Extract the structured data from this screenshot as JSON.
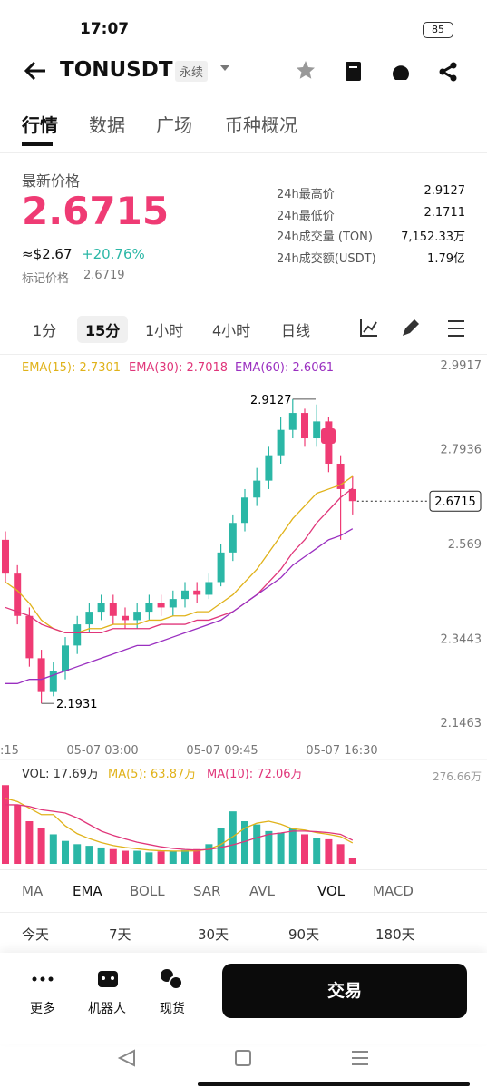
{
  "status_bar": {
    "time": "17:07",
    "battery": "85"
  },
  "header": {
    "symbol": "TONUSDT",
    "badge": "永续"
  },
  "tabs": [
    "行情",
    "数据",
    "广场",
    "币种概况"
  ],
  "price": {
    "label": "最新价格",
    "last": "2.6715",
    "usd": "≈$2.67",
    "change": "+20.76%",
    "mark_label": "标记价格",
    "mark": "2.6719"
  },
  "stats": [
    {
      "label": "24h最高价",
      "value": "2.9127"
    },
    {
      "label": "24h最低价",
      "value": "2.1711"
    },
    {
      "label": "24h成交量 (TON)",
      "value": "7,152.33万"
    },
    {
      "label": "24h成交额(USDT)",
      "value": "1.79亿"
    }
  ],
  "intervals": [
    "1分",
    "15分",
    "1小时",
    "4小时",
    "日线"
  ],
  "chart_data": {
    "type": "candlestick",
    "open": [
      2.58,
      2.5,
      2.4,
      2.3,
      2.22,
      2.27,
      2.33,
      2.38,
      2.41,
      2.43,
      2.4,
      2.39,
      2.41,
      2.43,
      2.42,
      2.44,
      2.46,
      2.45,
      2.48,
      2.55,
      2.62,
      2.68,
      2.72,
      2.78,
      2.84,
      2.88,
      2.82,
      2.86,
      2.76,
      2.7
    ],
    "high": [
      2.6,
      2.52,
      2.42,
      2.32,
      2.29,
      2.35,
      2.4,
      2.43,
      2.45,
      2.45,
      2.42,
      2.43,
      2.45,
      2.45,
      2.46,
      2.48,
      2.48,
      2.5,
      2.57,
      2.64,
      2.7,
      2.75,
      2.8,
      2.87,
      2.9127,
      2.89,
      2.9,
      2.87,
      2.78,
      2.73
    ],
    "low": [
      2.48,
      2.38,
      2.28,
      2.1931,
      2.21,
      2.25,
      2.31,
      2.36,
      2.39,
      2.38,
      2.37,
      2.37,
      2.39,
      2.4,
      2.4,
      2.42,
      2.43,
      2.44,
      2.47,
      2.53,
      2.6,
      2.66,
      2.7,
      2.76,
      2.82,
      2.8,
      2.8,
      2.74,
      2.58,
      2.64
    ],
    "close": [
      2.5,
      2.4,
      2.3,
      2.22,
      2.27,
      2.33,
      2.38,
      2.41,
      2.43,
      2.4,
      2.39,
      2.41,
      2.43,
      2.42,
      2.44,
      2.46,
      2.45,
      2.48,
      2.55,
      2.62,
      2.68,
      2.72,
      2.78,
      2.84,
      2.88,
      2.82,
      2.86,
      2.76,
      2.7,
      2.6715
    ],
    "up_color": "#2bb7a6",
    "down_color": "#ef3b74",
    "series": [
      {
        "name": "EMA(15): 2.7301",
        "color": "#e0b21a",
        "values": [
          2.48,
          2.46,
          2.43,
          2.39,
          2.37,
          2.36,
          2.36,
          2.37,
          2.37,
          2.38,
          2.38,
          2.38,
          2.39,
          2.39,
          2.4,
          2.4,
          2.41,
          2.41,
          2.43,
          2.45,
          2.48,
          2.51,
          2.55,
          2.59,
          2.63,
          2.66,
          2.69,
          2.7,
          2.71,
          2.7301
        ]
      },
      {
        "name": "EMA(30): 2.7018",
        "color": "#e0367a",
        "values": [
          2.42,
          2.41,
          2.4,
          2.38,
          2.37,
          2.36,
          2.36,
          2.36,
          2.36,
          2.37,
          2.37,
          2.37,
          2.37,
          2.38,
          2.38,
          2.38,
          2.39,
          2.39,
          2.4,
          2.41,
          2.43,
          2.45,
          2.48,
          2.51,
          2.55,
          2.58,
          2.62,
          2.65,
          2.68,
          2.7018
        ]
      },
      {
        "name": "EMA(60): 2.6061",
        "color": "#9a2fc0",
        "values": [
          2.24,
          2.24,
          2.25,
          2.25,
          2.26,
          2.27,
          2.28,
          2.29,
          2.3,
          2.31,
          2.32,
          2.33,
          2.33,
          2.34,
          2.35,
          2.36,
          2.37,
          2.38,
          2.39,
          2.41,
          2.43,
          2.45,
          2.47,
          2.49,
          2.52,
          2.54,
          2.56,
          2.58,
          2.59,
          2.6061
        ]
      }
    ],
    "ylim": [
      2.1463,
      2.9917
    ],
    "yticks": [
      2.9917,
      2.7936,
      2.569,
      2.3443,
      2.1463
    ],
    "grid": false,
    "x_labels": [
      ":15",
      "05-07 03:00",
      "05-07 09:45",
      "05-07 16:30"
    ],
    "volume": {
      "legend": [
        "VOL: 17.69万",
        "MA(5): 63.87万",
        "MA(10): 72.06万"
      ],
      "values": [
        240,
        180,
        130,
        110,
        90,
        70,
        60,
        55,
        50,
        45,
        40,
        40,
        35,
        38,
        40,
        42,
        45,
        60,
        110,
        160,
        130,
        120,
        100,
        95,
        110,
        90,
        80,
        75,
        60,
        17.69
      ],
      "ma5": [
        200,
        190,
        170,
        150,
        150,
        116,
        92,
        77,
        65,
        56,
        50,
        46,
        42,
        40,
        39,
        39,
        40,
        45,
        59,
        83,
        109,
        124,
        130,
        121,
        107,
        103,
        95,
        90,
        83,
        63.87
      ],
      "ma10": [
        180,
        180,
        175,
        165,
        160,
        155,
        140,
        120,
        100,
        87,
        76,
        66,
        59,
        52,
        47,
        44,
        42,
        44,
        50,
        58,
        68,
        80,
        90,
        94,
        100,
        100,
        98,
        95,
        90,
        72.06
      ],
      "ylim": [
        0,
        276.66
      ],
      "yticks": [
        {
          "value": 276.66,
          "label": "276.66万"
        }
      ]
    }
  },
  "indicators": [
    "MA",
    "EMA",
    "BOLL",
    "SAR",
    "AVL",
    "VOL",
    "MACD"
  ],
  "periods": [
    "今天",
    "7天",
    "30天",
    "90天",
    "180天"
  ],
  "bottom": {
    "more": "更多",
    "bot": "机器人",
    "spot": "现货",
    "trade": "交易"
  }
}
